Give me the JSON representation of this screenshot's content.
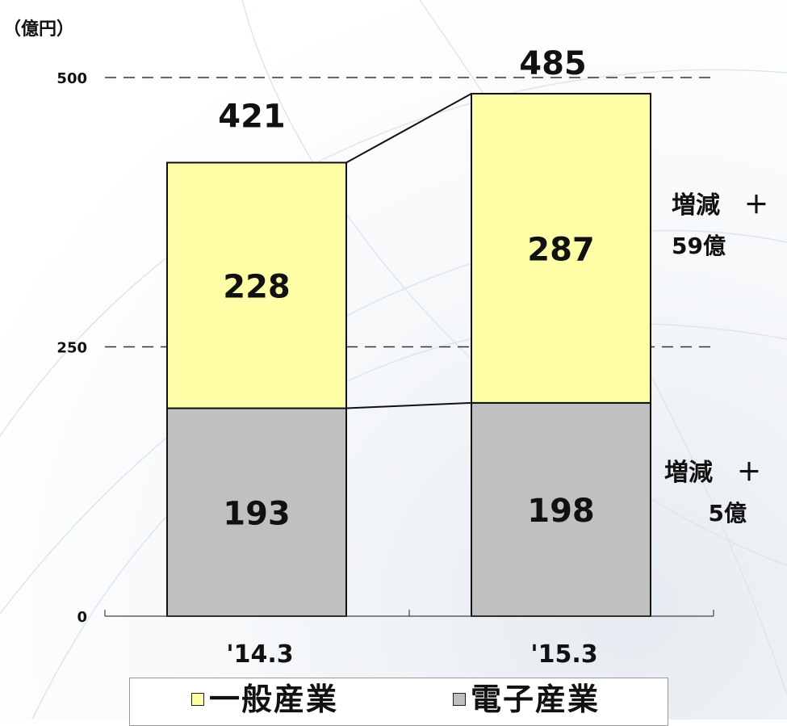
{
  "chart_data": {
    "type": "bar",
    "stacked": true,
    "unit_label": "（億円）",
    "categories": [
      "'14.3",
      "'15.3"
    ],
    "series": [
      {
        "name": "電子産業",
        "values": [
          193,
          198
        ],
        "color": "#c0c0c0"
      },
      {
        "name": "一般産業",
        "values": [
          228,
          287
        ],
        "color": "#ffffa8"
      }
    ],
    "totals": [
      421,
      485
    ],
    "ylim": [
      0,
      500
    ],
    "yticks": [
      "0",
      "250",
      "500"
    ],
    "gridlines": "dashed",
    "legend_position": "bottom",
    "annotations": [
      {
        "series": "一般産業",
        "line1": "増減　＋",
        "line2": "59億"
      },
      {
        "series": "電子産業",
        "line1": "増減　＋",
        "line2": "5億"
      }
    ]
  },
  "legend": {
    "items": [
      {
        "label": "一般産業",
        "color": "#ffffa8"
      },
      {
        "label": "電子産業",
        "color": "#c0c0c0"
      }
    ]
  }
}
